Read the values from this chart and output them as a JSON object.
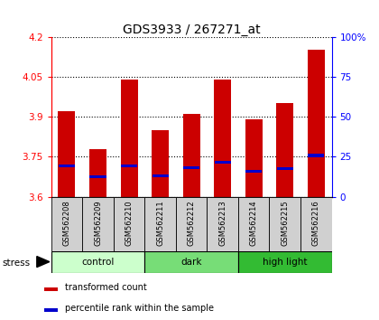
{
  "title": "GDS3933 / 267271_at",
  "samples": [
    "GSM562208",
    "GSM562209",
    "GSM562210",
    "GSM562211",
    "GSM562212",
    "GSM562213",
    "GSM562214",
    "GSM562215",
    "GSM562216"
  ],
  "bar_values": [
    3.92,
    3.78,
    4.04,
    3.85,
    3.91,
    4.04,
    3.89,
    3.95,
    4.15
  ],
  "percentile_values": [
    3.715,
    3.675,
    3.715,
    3.678,
    3.71,
    3.73,
    3.695,
    3.705,
    3.755
  ],
  "ymin": 3.6,
  "ymax": 4.2,
  "yticks_left": [
    3.6,
    3.75,
    3.9,
    4.05,
    4.2
  ],
  "yticks_right": [
    0,
    25,
    50,
    75,
    100
  ],
  "bar_color": "#cc0000",
  "percentile_color": "#0000cc",
  "groups": [
    {
      "label": "control",
      "start": 0,
      "end": 2,
      "color": "#ccffcc"
    },
    {
      "label": "dark",
      "start": 3,
      "end": 5,
      "color": "#77dd77"
    },
    {
      "label": "high light",
      "start": 6,
      "end": 8,
      "color": "#33bb33"
    }
  ],
  "stress_label": "stress",
  "legend_items": [
    {
      "color": "#cc0000",
      "label": "transformed count"
    },
    {
      "color": "#0000cc",
      "label": "percentile rank within the sample"
    }
  ]
}
